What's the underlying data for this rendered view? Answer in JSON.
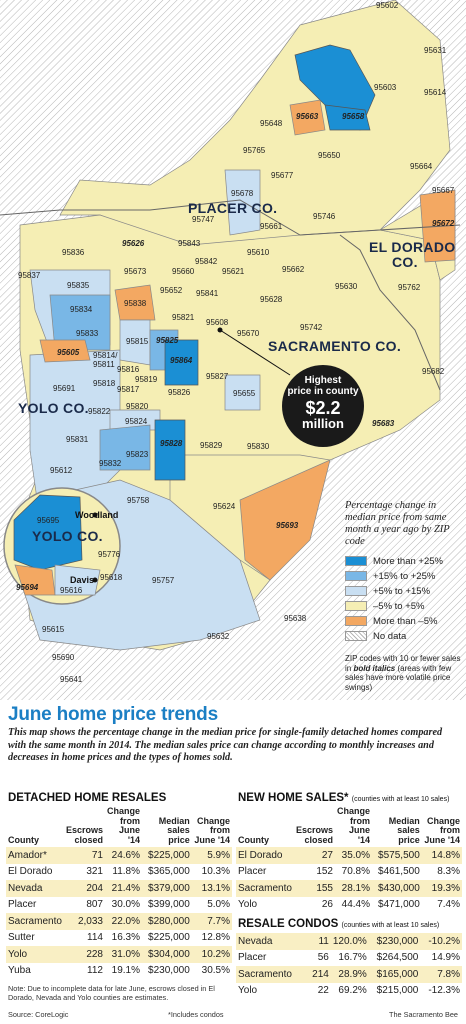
{
  "legend": {
    "title": "Percentage change in median price from same month a year ago by ZIP code",
    "items": [
      {
        "label": "More than +25%",
        "color": "#1b8fd4"
      },
      {
        "label": "+15% to +25%",
        "color": "#79b7e6"
      },
      {
        "label": "+5% to +15%",
        "color": "#c9dff2"
      },
      {
        "label": "–5% to +5%",
        "color": "#f5eeb4"
      },
      {
        "label": "More than –5%",
        "color": "#f3a862"
      },
      {
        "label": "No data",
        "color": "hatch"
      }
    ],
    "note_1": "ZIP codes with 10 or fewer sales in ",
    "note_bold": "bold italics",
    "note_2": " (areas with few sales have more volatile price swings)"
  },
  "map": {
    "counties": {
      "placer": "PLACER CO.",
      "el_dorado_1": "EL DORADO",
      "el_dorado_2": "CO.",
      "sacramento": "SACRAMENTO CO.",
      "yolo": "YOLO CO.",
      "yolo_inset": "YOLO CO."
    },
    "cities": {
      "woodland": "Woodland",
      "davis": "Davis"
    },
    "callout": {
      "line1": "Highest",
      "line2": "price in county",
      "line3": "$2.2",
      "line4": "million"
    },
    "zips": {
      "z95602": "95602",
      "z95631": "95631",
      "z95603": "95603",
      "z95614": "95614",
      "z95648": "95648",
      "z95663": "95663",
      "z95658": "95658",
      "z95650": "95650",
      "z95765": "95765",
      "z95664": "95664",
      "z95677": "95677",
      "z95667": "95667",
      "z95678": "95678",
      "z95672": "95672",
      "z95747": "95747",
      "z95746": "95746",
      "z95661": "95661",
      "z95626": "95626",
      "z95843": "95843",
      "z95610": "95610",
      "z95836": "95836",
      "z95842": "95842",
      "z95837": "95837",
      "z95673": "95673",
      "z95660": "95660",
      "z95621": "95621",
      "z95662": "95662",
      "z95835": "95835",
      "z95652": "95652",
      "z95630": "95630",
      "z95762": "95762",
      "z95834": "95834",
      "z95838": "95838",
      "z95841": "95841",
      "z95628": "95628",
      "z95833": "95833",
      "z95821": "95821",
      "z95608": "95608",
      "z95742": "95742",
      "z95670": "95670",
      "z95605": "95605",
      "z95814": "95814/",
      "z95811": "95811",
      "z95815": "95815",
      "z95825": "95825",
      "z95816": "95816",
      "z95864": "95864",
      "z95682": "95682",
      "z95691": "95691",
      "z95818": "95818",
      "z95819": "95819",
      "z95817": "95817",
      "z95826": "95826",
      "z95827": "95827",
      "z95655": "95655",
      "z95820": "95820",
      "z95822": "95822",
      "z95824": "95824",
      "z95683": "95683",
      "z95823": "95823",
      "z95828": "95828",
      "z95831": "95831",
      "z95829": "95829",
      "z95830": "95830",
      "z95832": "95832",
      "z95612": "95612",
      "z95758": "95758",
      "z95624": "95624",
      "z95695": "95695",
      "z95776": "95776",
      "z95693": "95693",
      "z95618": "95618",
      "z95694": "95694",
      "z95616": "95616",
      "z95757": "95757",
      "z95638": "95638",
      "z95615": "95615",
      "z95632": "95632",
      "z95690": "95690",
      "z95641": "95641"
    }
  },
  "headline": "June home price trends",
  "intro": "This map shows the percentage change in the median price for single-family detached homes compared with the same month in 2014. The median sales price can change according to monthly increases and decreases in home prices and the types of homes sold.",
  "detached": {
    "title": "DETACHED HOME RESALES",
    "headers": [
      "County",
      "Escrows closed",
      "Change from June '14",
      "Median sales price",
      "Change from June '14"
    ],
    "rows": [
      [
        "Amador*",
        "71",
        "24.6%",
        "$225,000",
        "5.9%"
      ],
      [
        "El Dorado",
        "321",
        "11.8%",
        "$365,000",
        "10.3%"
      ],
      [
        "Nevada",
        "204",
        "21.4%",
        "$379,000",
        "13.1%"
      ],
      [
        "Placer",
        "807",
        "30.0%",
        "$399,000",
        "5.0%"
      ],
      [
        "Sacramento",
        "2,033",
        "22.0%",
        "$280,000",
        "7.7%"
      ],
      [
        "Sutter",
        "114",
        "16.3%",
        "$225,000",
        "12.8%"
      ],
      [
        "Yolo",
        "228",
        "31.0%",
        "$304,000",
        "10.2%"
      ],
      [
        "Yuba",
        "112",
        "19.1%",
        "$230,000",
        "30.5%"
      ]
    ]
  },
  "new_homes": {
    "title": "NEW HOME SALES*",
    "subtitle": "(counties with at least 10 sales)",
    "headers": [
      "County",
      "Escrows closed",
      "Change from June '14",
      "Median sales price",
      "Change from June '14"
    ],
    "rows": [
      [
        "El Dorado",
        "27",
        "35.0%",
        "$575,500",
        "14.8%"
      ],
      [
        "Placer",
        "152",
        "70.8%",
        "$461,500",
        "8.3%"
      ],
      [
        "Sacramento",
        "155",
        "28.1%",
        "$430,000",
        "19.3%"
      ],
      [
        "Yolo",
        "26",
        "44.4%",
        "$471,000",
        "7.4%"
      ]
    ]
  },
  "condos": {
    "title": "RESALE CONDOS",
    "subtitle": "(counties with at least 10 sales)",
    "rows": [
      [
        "Nevada",
        "11",
        "120.0%",
        "$230,000",
        "-10.2%"
      ],
      [
        "Placer",
        "56",
        "16.7%",
        "$264,500",
        "14.9%"
      ],
      [
        "Sacramento",
        "214",
        "28.9%",
        "$165,000",
        "7.8%"
      ],
      [
        "Yolo",
        "22",
        "69.2%",
        "$215,000",
        "-12.3%"
      ]
    ]
  },
  "footnote": "Note: Due to incomplete data for late June, escrows closed in El Dorado, Nevada and Yolo counties are estimates.",
  "source": "Source: CoreLogic",
  "condos_note": "*Includes condos",
  "credit": "The Sacramento Bee"
}
